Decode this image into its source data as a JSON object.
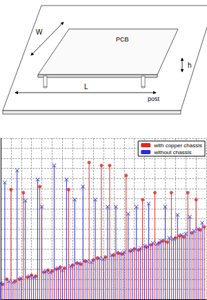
{
  "diagram": {
    "labels": {
      "width": "W",
      "board": "PCB",
      "height": "h",
      "post": "post",
      "length": "L"
    }
  },
  "chart_data": {
    "type": "stem",
    "series": [
      {
        "name": "with copper chassis",
        "color": "#e3261f",
        "marker": "circle",
        "x": [
          0.2,
          0.6,
          1,
          1.4,
          1.8,
          2.2,
          2.6,
          3,
          3.4,
          3.8,
          4.2,
          4.6,
          5,
          5.4,
          5.8,
          6.2,
          6.6,
          7,
          7.4,
          7.8,
          8.2,
          8.6,
          9,
          9.4,
          9.8,
          10.2,
          10.6,
          11,
          11.4,
          11.8,
          12.2,
          12.6,
          13,
          13.4,
          13.8,
          14.2,
          14.6,
          15,
          15.4,
          15.8,
          16.2,
          16.6,
          17,
          17.4,
          17.8,
          18.2,
          18.6,
          19,
          19.4,
          19.8
        ],
        "values": [
          1.5,
          2.0,
          10.9,
          1.8,
          2.0,
          10.6,
          2.2,
          2.4,
          2.3,
          11.2,
          2.7,
          2.9,
          2.8,
          3.0,
          3.2,
          3.1,
          10.9,
          3.4,
          3.6,
          3.5,
          3.8,
          13.6,
          3.9,
          4.1,
          13.3,
          4.2,
          13.3,
          4.4,
          4.6,
          4.5,
          12.3,
          4.8,
          5.0,
          4.9,
          9.9,
          5.2,
          5.4,
          10.6,
          5.6,
          5.8,
          5.7,
          10.6,
          6.1,
          6.3,
          6.2,
          10.6,
          6.6,
          9.9,
          6.9,
          7.2
        ]
      },
      {
        "name": "without chassis",
        "color": "#2a2ae0",
        "marker": "x",
        "x": [
          0,
          0.4,
          0.8,
          1.2,
          1.6,
          2,
          2.4,
          2.8,
          3.2,
          3.6,
          4,
          4.4,
          4.8,
          5.2,
          5.6,
          6,
          6.4,
          6.8,
          7.2,
          7.6,
          8,
          8.4,
          8.8,
          9.2,
          9.6,
          10,
          10.4,
          10.8,
          11.2,
          11.6,
          12,
          12.4,
          12.8,
          13.2,
          13.6,
          14,
          14.4,
          14.8,
          15.2,
          15.6,
          16,
          16.4,
          16.8,
          17.2,
          17.6,
          18,
          18.4,
          18.8,
          19.2,
          19.6
        ],
        "values": [
          1.6,
          11.6,
          1.8,
          1.7,
          12.8,
          2.1,
          9.8,
          2.3,
          2.2,
          11.9,
          9.2,
          2.8,
          2.7,
          13.3,
          3.1,
          2.9,
          11.9,
          3.3,
          9.9,
          3.6,
          11.2,
          3.8,
          3.7,
          9.9,
          4.1,
          4.0,
          9.2,
          4.4,
          9.2,
          4.6,
          4.7,
          8.5,
          4.9,
          9.2,
          5.1,
          5.3,
          9.5,
          5.6,
          5.5,
          5.8,
          9.2,
          6.1,
          6.0,
          8.4,
          6.4,
          6.5,
          8.2,
          6.8,
          7.0,
          7.6
        ]
      }
    ],
    "xlim": [
      0,
      20
    ],
    "xticks": [
      0,
      1,
      2,
      3,
      4,
      5,
      6,
      7,
      8,
      9,
      10,
      11,
      12,
      13,
      14,
      15,
      16,
      17,
      18,
      19,
      20
    ],
    "ylim": [
      0,
      16
    ],
    "yticks": [
      0,
      1,
      2,
      3,
      4,
      5,
      6,
      7,
      8,
      9,
      10,
      11,
      12,
      13,
      14,
      15,
      16
    ],
    "grid": true,
    "legend": "upper right",
    "tick_labels": false
  }
}
